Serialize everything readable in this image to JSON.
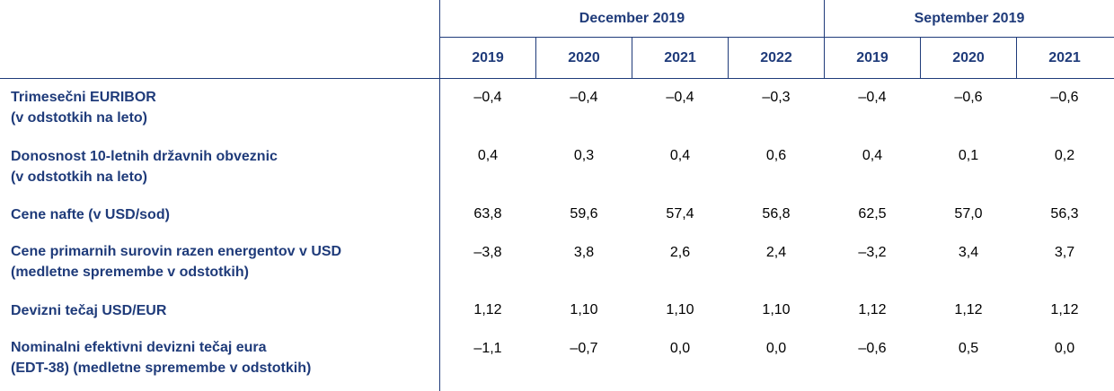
{
  "groups": [
    {
      "label": "December 2019",
      "years": [
        "2019",
        "2020",
        "2021",
        "2022"
      ]
    },
    {
      "label": "September 2019",
      "years": [
        "2019",
        "2020",
        "2021"
      ]
    }
  ],
  "rows": [
    {
      "label": [
        "Trimesečni EURIBOR",
        "(v odstotkih na leto)"
      ],
      "values": [
        "–0,4",
        "–0,4",
        "–0,4",
        "–0,3",
        "–0,4",
        "–0,6",
        "–0,6"
      ]
    },
    {
      "label": [
        "Donosnost 10-letnih državnih obveznic",
        "(v odstotkih na leto)"
      ],
      "values": [
        "0,4",
        "0,3",
        "0,4",
        "0,6",
        "0,4",
        "0,1",
        "0,2"
      ]
    },
    {
      "label": [
        "Cene nafte (v USD/sod)"
      ],
      "values": [
        "63,8",
        "59,6",
        "57,4",
        "56,8",
        "62,5",
        "57,0",
        "56,3"
      ]
    },
    {
      "label": [
        "Cene primarnih surovin razen energentov v USD",
        "(medletne spremembe v odstotkih)"
      ],
      "values": [
        "–3,8",
        "3,8",
        "2,6",
        "2,4",
        "–3,2",
        "3,4",
        "3,7"
      ]
    },
    {
      "label": [
        "Devizni tečaj USD/EUR"
      ],
      "values": [
        "1,12",
        "1,10",
        "1,10",
        "1,10",
        "1,12",
        "1,12",
        "1,12"
      ]
    },
    {
      "label": [
        "Nominalni efektivni devizni tečaj eura",
        "(EDT-38) (medletne spremembe v odstotkih)"
      ],
      "values": [
        "–1,1",
        "–0,7",
        "0,0",
        "0,0",
        "–0,6",
        "0,5",
        "0,0"
      ]
    }
  ]
}
